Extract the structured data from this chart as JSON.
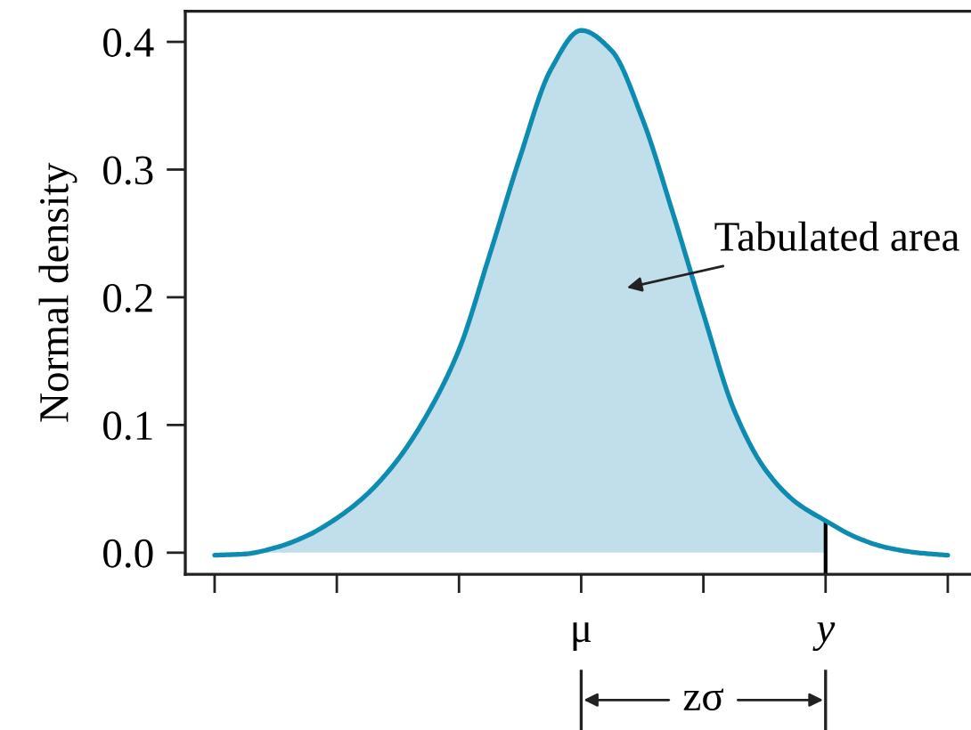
{
  "chart_data": {
    "type": "line",
    "ylabel": "Normal density",
    "categories": [
      null,
      null,
      null,
      null,
      null,
      null,
      null,
      null,
      null,
      null,
      null,
      null,
      "μ",
      null,
      null,
      null,
      null,
      null,
      null,
      null,
      "y",
      null,
      null,
      null,
      null
    ],
    "series": [
      {
        "type": "area",
        "color": "#c0dfeb",
        "values": [
          -0.002,
          -0.001,
          0.004,
          0.013,
          0.027,
          0.046,
          0.073,
          0.11,
          0.159,
          0.233,
          0.31,
          0.378,
          0.409,
          0.393,
          0.34,
          0.266,
          0.187,
          0.112,
          0.066,
          0.04,
          0.025,
          null,
          null,
          null,
          null
        ]
      },
      {
        "color": "#0e8bb0",
        "values": [
          -0.002,
          -0.001,
          0.004,
          0.013,
          0.027,
          0.046,
          0.073,
          0.11,
          0.159,
          0.233,
          0.31,
          0.378,
          0.409,
          0.393,
          0.34,
          0.266,
          0.187,
          0.112,
          0.066,
          0.04,
          0.025,
          0.012,
          0.004,
          0.0,
          -0.002
        ]
      }
    ],
    "ylim": [
      -0.017,
      0.424
    ],
    "yticks": [
      {
        "value": 0,
        "label": "0.0"
      },
      0.1,
      0.2,
      0.3,
      0.4
    ],
    "ref_lines": [
      {
        "axis": "x",
        "value": "y",
        "color": "#000000"
      }
    ],
    "annotations": [
      "Tabulated area",
      "zσ"
    ]
  }
}
